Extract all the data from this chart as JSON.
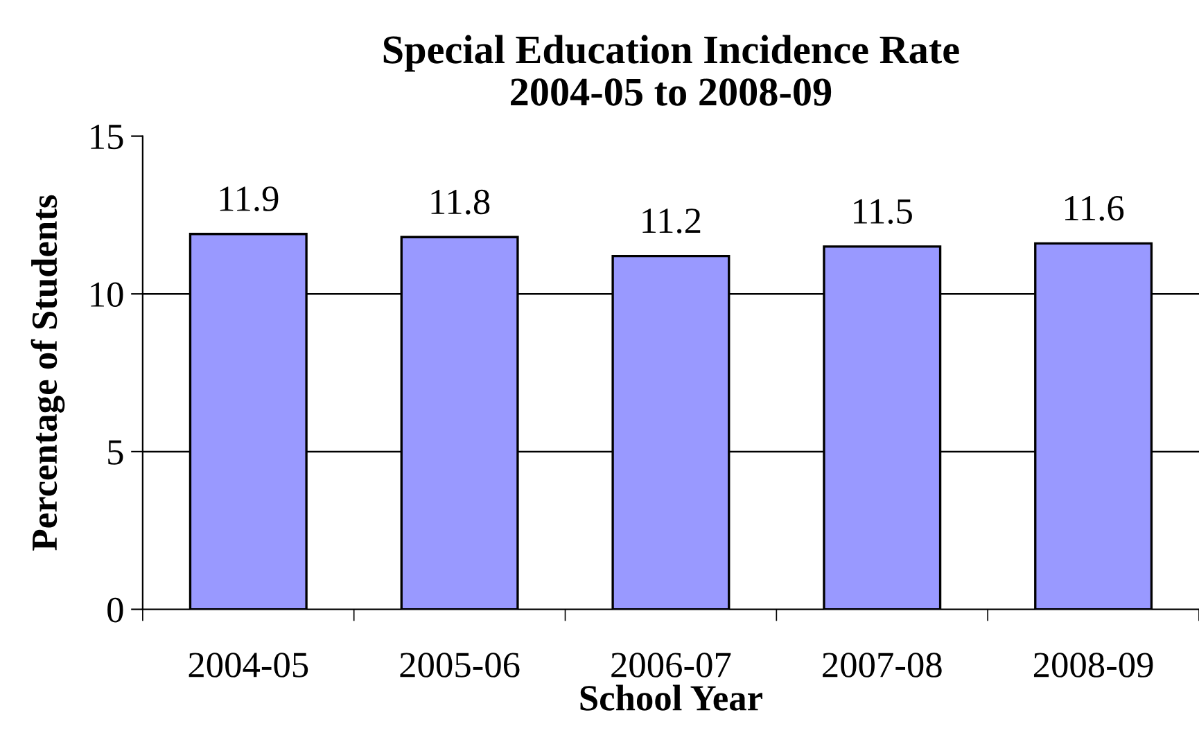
{
  "chart_data": {
    "type": "bar",
    "title": "Special Education Incidence Rate\n2004-05 to 2008-09",
    "xlabel": "School Year",
    "ylabel": "Percentage of Students",
    "categories": [
      "2004-05",
      "2005-06",
      "2006-07",
      "2007-08",
      "2008-09"
    ],
    "values": [
      11.9,
      11.8,
      11.2,
      11.5,
      11.6
    ],
    "color": "#9999ff",
    "ylim": [
      0,
      15
    ],
    "yticks": [
      0,
      5,
      10,
      15
    ],
    "grid": "y",
    "data_labels": true
  }
}
